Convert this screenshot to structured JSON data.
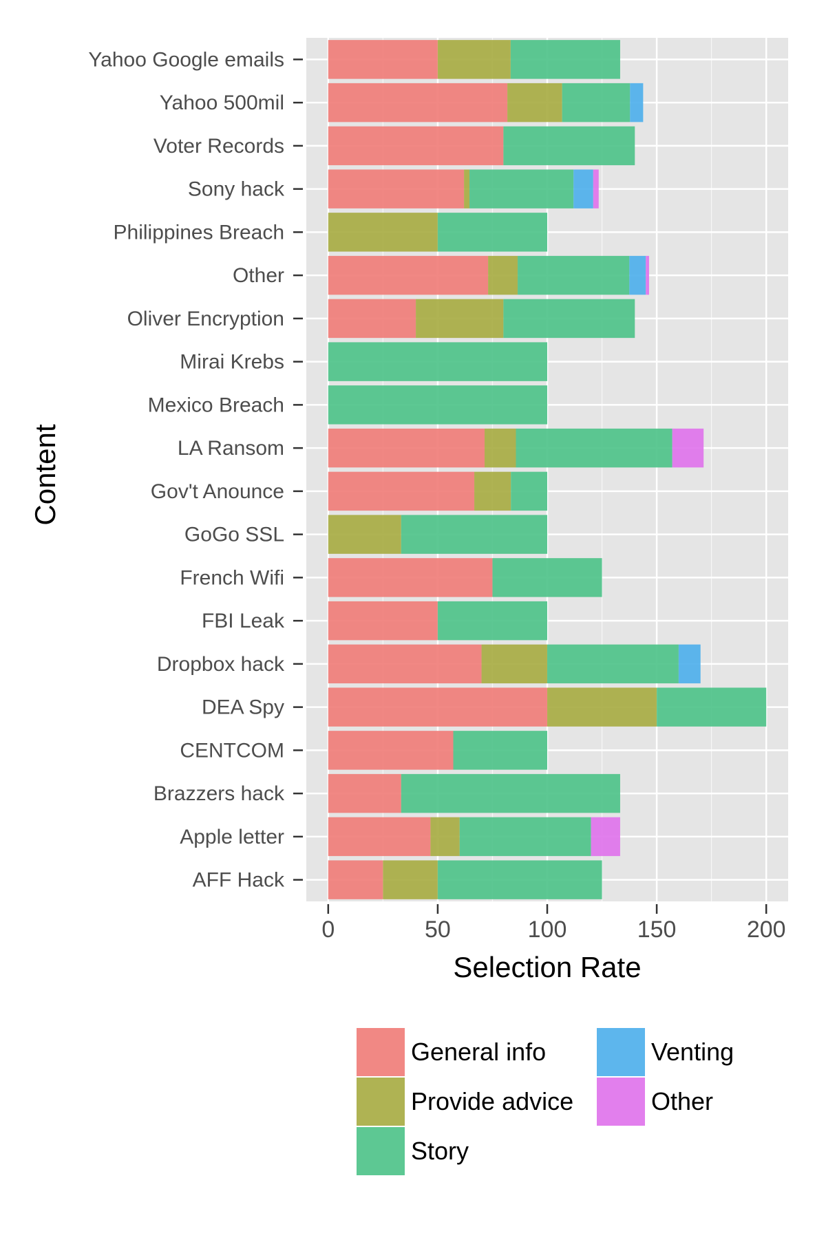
{
  "chart_data": {
    "type": "bar",
    "orientation": "horizontal",
    "stacked": true,
    "xlabel": "Selection Rate",
    "ylabel": "Content",
    "xlim": [
      -10,
      210
    ],
    "xticks": [
      0,
      50,
      100,
      150,
      200
    ],
    "grid": true,
    "legend_position": "bottom",
    "categories": [
      "Yahoo Google emails",
      "Yahoo 500mil",
      "Voter Records",
      "Sony hack",
      "Philippines Breach",
      "Other",
      "Oliver Encryption",
      "Mirai Krebs",
      "Mexico Breach",
      "LA Ransom",
      "Gov't Anounce",
      "GoGo SSL",
      "French Wifi",
      "FBI Leak",
      "Dropbox hack",
      "DEA Spy",
      "CENTCOM",
      "Brazzers hack",
      "Apple letter",
      "AFF Hack"
    ],
    "series": [
      {
        "name": "General info",
        "color": "#F07E7A",
        "values": [
          50,
          81.8,
          80,
          62,
          0,
          73,
          40,
          0,
          0,
          71.4,
          66.7,
          0,
          75,
          50,
          70,
          100,
          57.1,
          33.3,
          46.7,
          25
        ]
      },
      {
        "name": "Provide advice",
        "color": "#A8AD44",
        "values": [
          33.3,
          25,
          0,
          2.5,
          50,
          13.5,
          40,
          0,
          0,
          14.3,
          16.7,
          33.3,
          0,
          0,
          30,
          50,
          0,
          0,
          13.3,
          25
        ]
      },
      {
        "name": "Story",
        "color": "#4FC38A",
        "values": [
          50,
          31,
          60,
          47.5,
          50,
          51,
          60,
          100,
          100,
          71.4,
          16.6,
          66.7,
          50,
          50,
          60,
          50,
          42.9,
          100,
          60,
          75
        ]
      },
      {
        "name": "Venting",
        "color": "#4FB0EC",
        "values": [
          0,
          6,
          0,
          9,
          0,
          7.5,
          0,
          0,
          0,
          0,
          0,
          0,
          0,
          0,
          10,
          0,
          0,
          0,
          0,
          0
        ]
      },
      {
        "name": "Other",
        "color": "#E074EB",
        "values": [
          0,
          0,
          0,
          2.5,
          0,
          1.5,
          0,
          0,
          0,
          14.3,
          0,
          0,
          0,
          0,
          0,
          0,
          0,
          0,
          13.3,
          0
        ]
      }
    ],
    "legend_layout": {
      "columns": 2,
      "order": [
        [
          "General info",
          "Provide advice",
          "Story"
        ],
        [
          "Venting",
          "Other"
        ]
      ]
    },
    "colors": {
      "panel_background": "#E5E5E5",
      "grid": "#FFFFFF",
      "tick_text": "#4D4D4D",
      "axis_title": "#000000"
    }
  }
}
